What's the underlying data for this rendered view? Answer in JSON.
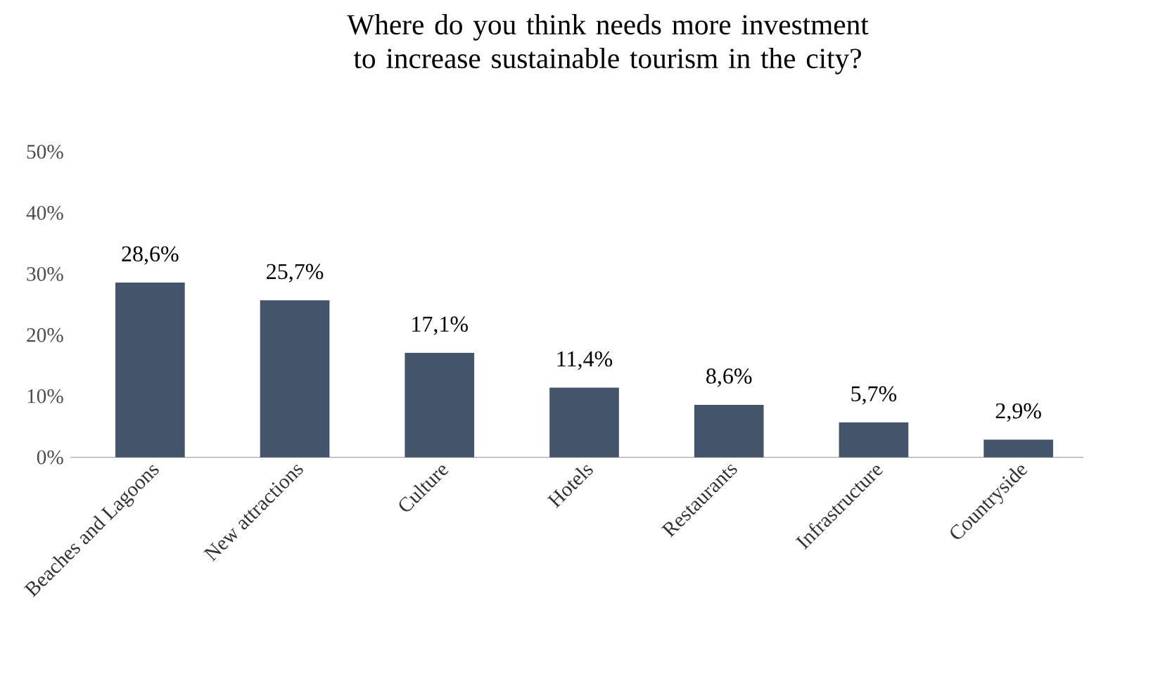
{
  "chart_data": {
    "type": "bar",
    "title": "Where do you think needs more investment to increase sustainable tourism in the city?",
    "categories": [
      "Beaches and Lagoons",
      "New attractions",
      "Culture",
      "Hotels",
      "Restaurants",
      "Infrastructure",
      "Countryside"
    ],
    "values": [
      28.6,
      25.7,
      17.1,
      11.4,
      8.6,
      5.7,
      2.9
    ],
    "value_labels": [
      "28,6%",
      "25,7%",
      "17,1%",
      "11,4%",
      "8,6%",
      "5,7%",
      "2,9%"
    ],
    "color": "#44546a",
    "ylim": [
      0,
      50
    ],
    "yticks": [
      {
        "value": 0,
        "label": "0%"
      },
      {
        "value": 10,
        "label": "10%"
      },
      {
        "value": 20,
        "label": "20%"
      },
      {
        "value": 30,
        "label": "30%"
      },
      {
        "value": 40,
        "label": "40%"
      },
      {
        "value": 50,
        "label": "50%"
      }
    ],
    "grid": false
  }
}
